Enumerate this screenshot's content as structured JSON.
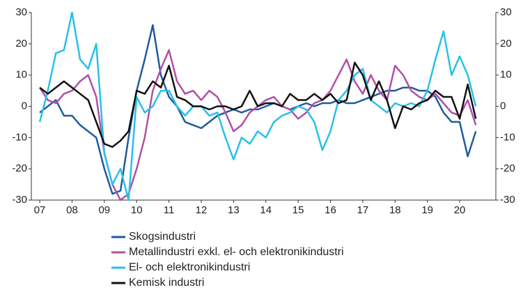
{
  "chart_data": {
    "type": "line",
    "x": [
      7,
      7.25,
      7.5,
      7.75,
      8,
      8.25,
      8.5,
      8.75,
      9,
      9.25,
      9.5,
      9.75,
      10,
      10.25,
      10.5,
      10.75,
      11,
      11.25,
      11.5,
      11.75,
      12,
      12.25,
      12.5,
      12.75,
      13,
      13.25,
      13.5,
      13.75,
      14,
      14.25,
      14.5,
      14.75,
      15,
      15.25,
      15.5,
      15.75,
      16,
      16.25,
      16.5,
      16.75,
      17,
      17.25,
      17.5,
      17.75,
      18,
      18.25,
      18.5,
      18.75,
      19,
      19.25,
      19.5,
      19.75,
      20,
      20.25,
      20.5
    ],
    "series": [
      {
        "name": "Skogsindustri",
        "color": "#1f5c99",
        "values": [
          -2,
          0,
          2,
          -3,
          -3,
          -6,
          -8,
          -10,
          -20,
          -28,
          -27,
          -10,
          5,
          15,
          26,
          10,
          3,
          0,
          -5,
          -6,
          -7,
          -5,
          -3,
          -2,
          -1,
          -2,
          -1,
          -1,
          0,
          1,
          0,
          -1,
          0,
          1,
          0,
          1,
          1,
          2,
          1,
          1,
          2,
          3,
          4,
          5,
          5,
          6,
          6,
          5,
          5,
          3,
          -2,
          -5,
          -5,
          -16,
          -8
        ]
      },
      {
        "name": "Metallindustri exkl. el- och elektronikindustri",
        "color": "#b04fa8",
        "values": [
          6,
          2,
          1,
          4,
          5,
          8,
          10,
          3,
          -15,
          -25,
          -30,
          -28,
          -20,
          -10,
          5,
          12,
          18,
          8,
          4,
          5,
          2,
          5,
          3,
          -2,
          -8,
          -6,
          -2,
          0,
          2,
          3,
          0,
          -1,
          -4,
          -2,
          1,
          2,
          5,
          10,
          15,
          8,
          4,
          10,
          5,
          2,
          13,
          10,
          5,
          3,
          2,
          4,
          1,
          -2,
          -3,
          2,
          -6
        ]
      },
      {
        "name": "El- och elektronikindustri",
        "color": "#27c0ea",
        "values": [
          -5,
          5,
          17,
          18,
          30,
          15,
          12,
          20,
          -15,
          -25,
          -20,
          -30,
          3,
          -2,
          0,
          5,
          5,
          0,
          -3,
          0,
          0,
          -3,
          -2,
          -10,
          -17,
          -10,
          -12,
          -8,
          -10,
          -5,
          -3,
          -2,
          0,
          -1,
          -5,
          -14,
          -8,
          2,
          5,
          10,
          12,
          2,
          0,
          -2,
          1,
          0,
          1,
          0,
          5,
          15,
          24,
          10,
          16,
          10,
          0
        ]
      },
      {
        "name": "Kemisk industri",
        "color": "#111111",
        "values": [
          6,
          4,
          6,
          8,
          6,
          4,
          2,
          -5,
          -12,
          -13,
          -11,
          -8,
          5,
          4,
          8,
          6,
          13,
          3,
          2,
          0,
          0,
          -1,
          0,
          0,
          -1,
          0,
          5,
          0,
          1,
          1,
          0,
          4,
          2,
          2,
          4,
          2,
          4,
          1,
          2,
          14,
          10,
          2,
          8,
          2,
          -7,
          0,
          -1,
          1,
          2,
          5,
          3,
          3,
          -4,
          7,
          -4
        ]
      }
    ],
    "xlim": [
      6.74,
      21.12
    ],
    "xticks": [
      {
        "value": 7,
        "label": "07"
      },
      {
        "value": 8,
        "label": "08"
      },
      {
        "value": 9,
        "label": "09"
      },
      10,
      11,
      12,
      13,
      14,
      15,
      16,
      17,
      18,
      19,
      20
    ],
    "ylim": [
      -30,
      30
    ],
    "yticks": [
      -30,
      -20,
      -10,
      0,
      10,
      20,
      30
    ],
    "y2lim": [
      -30,
      30
    ],
    "y2ticks": [
      -30,
      -20,
      -10,
      0,
      10,
      20,
      30
    ]
  }
}
